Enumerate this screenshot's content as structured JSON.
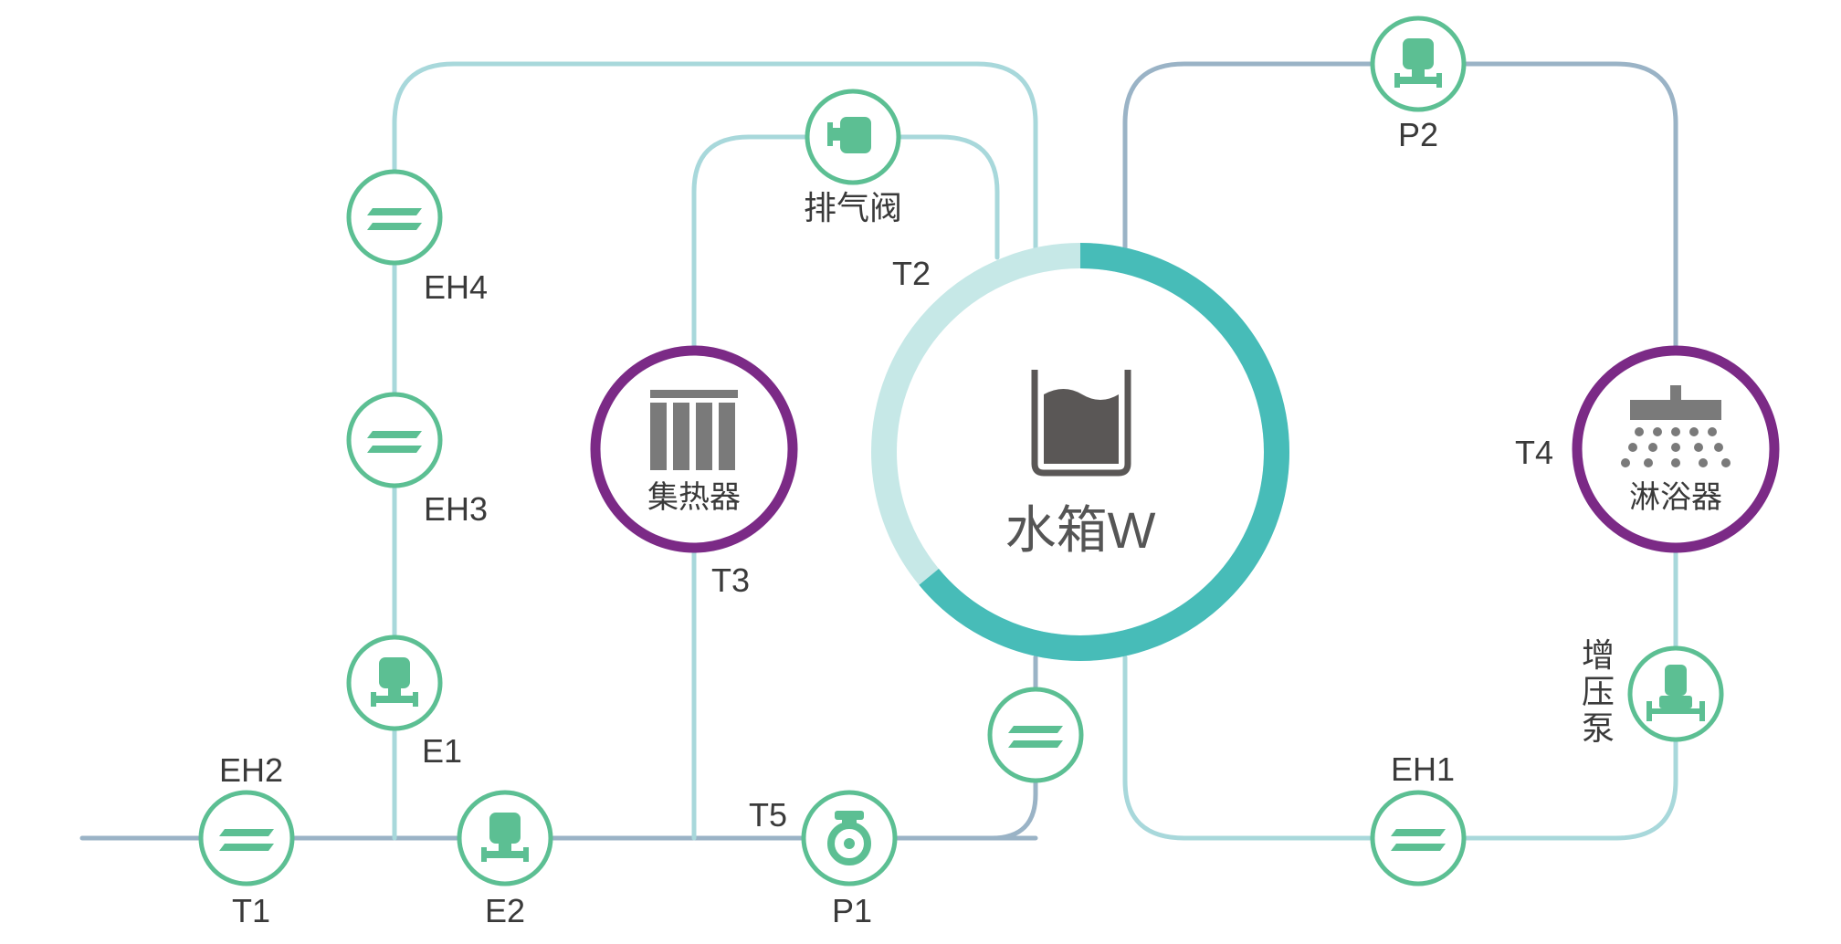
{
  "colors": {
    "pipe_teal": "#8fcdd3",
    "pipe_light": "#b8e0e0",
    "pipe_blue": "#8ab0c4",
    "pipe_slate": "#9ab3c6",
    "node_green": "#5cbf93",
    "device_purple": "#7b2a86",
    "tank_ring_dark": "#47bcb8",
    "tank_ring_light": "#c6e8e7",
    "icon_gray": "#7a7a7a",
    "text_dark": "#3a3a3a"
  },
  "tank": {
    "label": "水箱W",
    "icon": "water-level-icon",
    "level_fraction": 0.36
  },
  "collector": {
    "label": "集热器",
    "icon": "solar-collector-icon"
  },
  "shower": {
    "label": "淋浴器",
    "icon": "shower-icon"
  },
  "nodes": {
    "eh4": {
      "label": "EH4",
      "icon": "heater-icon"
    },
    "eh3": {
      "label": "EH3",
      "icon": "heater-icon"
    },
    "eh2": {
      "label": "EH2",
      "icon": "heater-icon"
    },
    "eh1": {
      "label": "EH1",
      "icon": "heater-icon"
    },
    "eh_return": {
      "icon": "heater-icon"
    },
    "e1": {
      "label": "E1",
      "icon": "valve-icon"
    },
    "e2": {
      "label": "E2",
      "icon": "valve-icon"
    },
    "p1": {
      "label": "P1",
      "icon": "circulation-pump-icon"
    },
    "p2": {
      "label": "P2",
      "icon": "valve-icon"
    },
    "vent": {
      "label": "排气阀",
      "icon": "vent-valve-icon"
    },
    "booster": {
      "label": "增压泵",
      "icon": "booster-pump-icon"
    }
  },
  "sensors": {
    "t1": "T1",
    "t2": "T2",
    "t3": "T3",
    "t4": "T4",
    "t5": "T5"
  }
}
